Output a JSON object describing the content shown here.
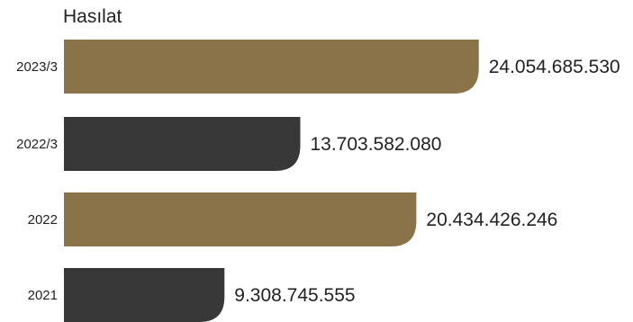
{
  "chart_data": {
    "type": "bar",
    "orientation": "horizontal",
    "title": "Hasılat",
    "categories": [
      "2023/3",
      "2022/3",
      "2022",
      "2021"
    ],
    "values": [
      24054685530,
      13703582080,
      20434426246,
      9308745555
    ],
    "value_labels": [
      "24.054.685.530",
      "13.703.582.080",
      "20.434.426.246",
      "9.308.745.555"
    ],
    "bar_colors": [
      "#8b7349",
      "#383838",
      "#8b7349",
      "#383838"
    ],
    "xlabel": "",
    "ylabel": "",
    "xlim": [
      0,
      26000000000
    ],
    "grid": false,
    "legend": "none"
  }
}
